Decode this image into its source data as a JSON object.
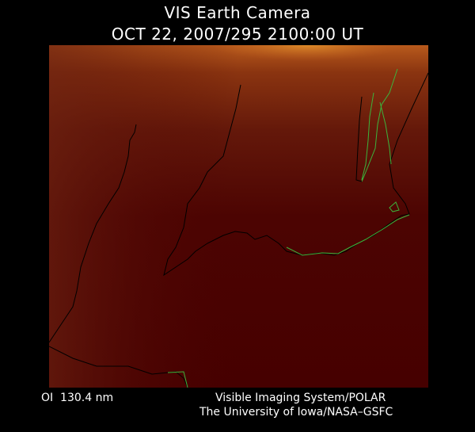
{
  "header": {
    "title": "VIS Earth Camera",
    "datetime": "OCT 22, 2007/295 2100:00 UT"
  },
  "image": {
    "description_colors": {
      "background": "#4a0000",
      "glow": "#c8641e",
      "coast_land": "#000000",
      "coast_boundary": "#3cb43c"
    }
  },
  "footer": {
    "wavelength": "OI  130.4 nm",
    "credit_line1": "Visible Imaging System/POLAR",
    "credit_line2": "The University of Iowa/NASA–GSFC"
  }
}
